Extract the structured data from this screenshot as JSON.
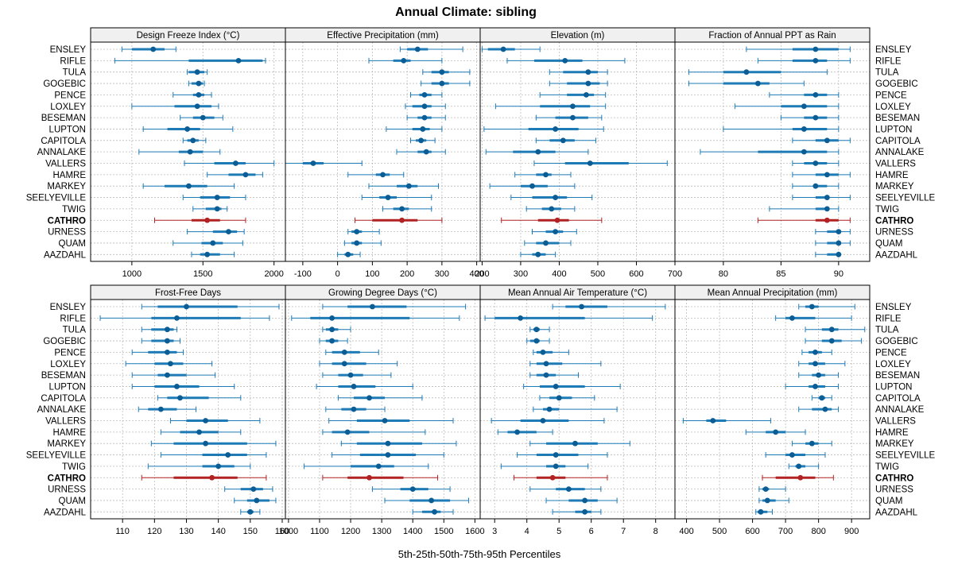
{
  "chart_data": {
    "type": "percentile-dotplot",
    "title": "Annual Climate: sibling",
    "xlabel": "5th-25th-50th-75th-95th Percentiles",
    "highlight": "CATHRO",
    "colors": {
      "series": "#1f7bb6",
      "median": "#0a5d95",
      "highlight": "#b22222",
      "grid": "#bbbbbb",
      "strip_bg": "#f0f0f0"
    },
    "sites": [
      "ENSLEY",
      "RIFLE",
      "TULA",
      "GOGEBIC",
      "PENCE",
      "LOXLEY",
      "BESEMAN",
      "LUPTON",
      "CAPITOLA",
      "ANNALAKE",
      "VALLERS",
      "HAMRE",
      "MARKEY",
      "SEELYEVILLE",
      "TWIG",
      "CATHRO",
      "URNESS",
      "QUAM",
      "AAZDAHL"
    ],
    "panels": [
      {
        "title": "Design Freeze Index (°C)",
        "xlim": [
          710,
          2080
        ],
        "ticks": [
          1000,
          1500,
          2000
        ],
        "values": [
          [
            930,
            1000,
            1150,
            1230,
            1310
          ],
          [
            880,
            1400,
            1750,
            1920,
            1940
          ],
          [
            1390,
            1400,
            1460,
            1510,
            1530
          ],
          [
            1400,
            1420,
            1470,
            1500,
            1510
          ],
          [
            1290,
            1430,
            1470,
            1510,
            1560
          ],
          [
            1000,
            1300,
            1460,
            1560,
            1610
          ],
          [
            1340,
            1430,
            1500,
            1580,
            1640
          ],
          [
            1080,
            1250,
            1390,
            1480,
            1710
          ],
          [
            1360,
            1390,
            1430,
            1470,
            1520
          ],
          [
            1050,
            1330,
            1410,
            1500,
            1620
          ],
          [
            1370,
            1580,
            1730,
            1800,
            2000
          ],
          [
            1530,
            1680,
            1800,
            1870,
            1920
          ],
          [
            1080,
            1230,
            1400,
            1530,
            1720
          ],
          [
            1360,
            1480,
            1600,
            1690,
            1800
          ],
          [
            1430,
            1520,
            1600,
            1630,
            1670
          ],
          [
            1160,
            1420,
            1530,
            1620,
            1800
          ],
          [
            1390,
            1570,
            1680,
            1740,
            1790
          ],
          [
            1290,
            1490,
            1570,
            1640,
            1780
          ],
          [
            1420,
            1480,
            1530,
            1620,
            1720
          ]
        ]
      },
      {
        "title": "Effective Precipitation (mm)",
        "xlim": [
          -150,
          410
        ],
        "ticks": [
          -100,
          0,
          100,
          200,
          300,
          400
        ],
        "values": [
          [
            180,
            200,
            230,
            260,
            360
          ],
          [
            90,
            160,
            190,
            210,
            300
          ],
          [
            245,
            270,
            300,
            320,
            380
          ],
          [
            240,
            270,
            300,
            320,
            380
          ],
          [
            210,
            235,
            250,
            270,
            300
          ],
          [
            195,
            215,
            250,
            270,
            310
          ],
          [
            200,
            230,
            250,
            270,
            310
          ],
          [
            140,
            215,
            245,
            265,
            300
          ],
          [
            210,
            225,
            240,
            255,
            280
          ],
          [
            170,
            230,
            255,
            270,
            310
          ],
          [
            -150,
            -100,
            -70,
            -40,
            70
          ],
          [
            30,
            110,
            130,
            150,
            190
          ],
          [
            90,
            170,
            205,
            230,
            290
          ],
          [
            70,
            120,
            145,
            170,
            270
          ],
          [
            130,
            160,
            185,
            205,
            270
          ],
          [
            50,
            100,
            185,
            230,
            300
          ],
          [
            30,
            40,
            55,
            70,
            120
          ],
          [
            20,
            40,
            55,
            70,
            125
          ],
          [
            0,
            20,
            30,
            45,
            65
          ]
        ]
      },
      {
        "title": "Elevation (m)",
        "xlim": [
          195,
          700
        ],
        "ticks": [
          200,
          300,
          400,
          500,
          600,
          700
        ],
        "values": [
          [
            200,
            215,
            255,
            285,
            350
          ],
          [
            265,
            335,
            415,
            460,
            570
          ],
          [
            375,
            410,
            475,
            500,
            525
          ],
          [
            375,
            420,
            475,
            505,
            525
          ],
          [
            350,
            420,
            470,
            490,
            520
          ],
          [
            235,
            350,
            435,
            480,
            520
          ],
          [
            340,
            390,
            435,
            475,
            510
          ],
          [
            205,
            320,
            390,
            450,
            515
          ],
          [
            340,
            375,
            410,
            440,
            495
          ],
          [
            210,
            280,
            345,
            390,
            475
          ],
          [
            335,
            415,
            480,
            580,
            680
          ],
          [
            285,
            340,
            365,
            380,
            430
          ],
          [
            220,
            300,
            330,
            370,
            440
          ],
          [
            275,
            330,
            390,
            420,
            485
          ],
          [
            315,
            355,
            380,
            405,
            440
          ],
          [
            250,
            345,
            395,
            425,
            510
          ],
          [
            330,
            365,
            390,
            410,
            445
          ],
          [
            310,
            340,
            365,
            400,
            430
          ],
          [
            300,
            330,
            345,
            365,
            390
          ]
        ]
      },
      {
        "title": "Fraction of Annual PPT as Rain",
        "xlim": [
          75.8,
          92.7
        ],
        "ticks": [
          80,
          85,
          90
        ],
        "values": [
          [
            82,
            86,
            88,
            90,
            91
          ],
          [
            83,
            86,
            88,
            89,
            91
          ],
          [
            77,
            80,
            82,
            85,
            89
          ],
          [
            77,
            80,
            83,
            84,
            87
          ],
          [
            84,
            87,
            88,
            89,
            90
          ],
          [
            81,
            85,
            87,
            89,
            90
          ],
          [
            85,
            87,
            88,
            89,
            90
          ],
          [
            80,
            86,
            87,
            89,
            90
          ],
          [
            86,
            88,
            89,
            90,
            91
          ],
          [
            78,
            83,
            87,
            89,
            90
          ],
          [
            86,
            87,
            88,
            89,
            90
          ],
          [
            86,
            88,
            89,
            90,
            91
          ],
          [
            86,
            88,
            88,
            89,
            90
          ],
          [
            86,
            88,
            89,
            89,
            91
          ],
          [
            84,
            88,
            89,
            89,
            90
          ],
          [
            83,
            88,
            89,
            90,
            91
          ],
          [
            88,
            89,
            90,
            90,
            91
          ],
          [
            88,
            89,
            90,
            90,
            91
          ],
          [
            88,
            89,
            90,
            90,
            90
          ]
        ]
      },
      {
        "title": "Frost-Free Days",
        "xlim": [
          100,
          161
        ],
        "ticks": [
          110,
          120,
          130,
          140,
          150,
          160
        ],
        "values": [
          [
            116,
            121,
            130,
            146,
            159
          ],
          [
            103,
            119,
            127,
            147,
            156
          ],
          [
            116,
            119,
            124,
            126,
            127
          ],
          [
            116,
            119,
            124,
            126,
            128
          ],
          [
            113,
            118,
            124,
            127,
            129
          ],
          [
            111,
            120,
            125,
            129,
            138
          ],
          [
            113,
            121,
            124,
            130,
            139
          ],
          [
            113,
            120,
            127,
            134,
            145
          ],
          [
            121,
            124,
            128,
            137,
            147
          ],
          [
            115,
            118,
            122,
            127,
            133
          ],
          [
            125,
            130,
            136,
            143,
            153
          ],
          [
            122,
            128,
            134,
            140,
            147
          ],
          [
            119,
            126,
            136,
            149,
            158
          ],
          [
            122,
            135,
            143,
            149,
            155
          ],
          [
            118,
            135,
            140,
            145,
            150
          ],
          [
            116,
            126,
            138,
            146,
            155
          ],
          [
            142,
            147,
            151,
            154,
            157
          ],
          [
            145,
            149,
            152,
            156,
            158
          ],
          [
            147,
            149,
            150,
            151,
            153
          ]
        ]
      },
      {
        "title": "Growing Degree Days (°C)",
        "xlim": [
          990,
          1617
        ],
        "ticks": [
          1000,
          1100,
          1200,
          1300,
          1400,
          1500,
          1600
        ],
        "values": [
          [
            1110,
            1190,
            1270,
            1380,
            1570
          ],
          [
            1010,
            1070,
            1140,
            1390,
            1550
          ],
          [
            1110,
            1120,
            1140,
            1160,
            1200
          ],
          [
            1100,
            1120,
            1140,
            1160,
            1190
          ],
          [
            1120,
            1140,
            1180,
            1230,
            1290
          ],
          [
            1100,
            1140,
            1180,
            1250,
            1350
          ],
          [
            1110,
            1160,
            1200,
            1240,
            1330
          ],
          [
            1090,
            1160,
            1210,
            1280,
            1400
          ],
          [
            1160,
            1210,
            1260,
            1310,
            1430
          ],
          [
            1120,
            1170,
            1210,
            1250,
            1310
          ],
          [
            1130,
            1220,
            1310,
            1390,
            1530
          ],
          [
            1110,
            1140,
            1190,
            1260,
            1440
          ],
          [
            1170,
            1220,
            1320,
            1430,
            1540
          ],
          [
            1140,
            1230,
            1320,
            1410,
            1500
          ],
          [
            1050,
            1200,
            1290,
            1340,
            1450
          ],
          [
            1110,
            1190,
            1260,
            1370,
            1480
          ],
          [
            1270,
            1360,
            1400,
            1450,
            1520
          ],
          [
            1310,
            1390,
            1460,
            1520,
            1580
          ],
          [
            1400,
            1430,
            1470,
            1490,
            1530
          ]
        ]
      },
      {
        "title": "Mean Annual Air Temperature (°C)",
        "xlim": [
          2.55,
          8.6
        ],
        "ticks": [
          3,
          4,
          5,
          6,
          7,
          8
        ],
        "values": [
          [
            4.8,
            5.2,
            5.7,
            6.5,
            8.3
          ],
          [
            2.7,
            3.0,
            3.8,
            5.8,
            7.9
          ],
          [
            4.1,
            4.2,
            4.3,
            4.4,
            4.7
          ],
          [
            4.0,
            4.1,
            4.3,
            4.4,
            4.7
          ],
          [
            4.2,
            4.3,
            4.5,
            4.8,
            5.3
          ],
          [
            4.1,
            4.3,
            4.6,
            5.1,
            6.3
          ],
          [
            4.1,
            4.3,
            4.6,
            4.9,
            5.6
          ],
          [
            3.9,
            4.4,
            4.9,
            5.8,
            6.9
          ],
          [
            4.4,
            4.7,
            5.0,
            5.4,
            6.1
          ],
          [
            4.2,
            4.5,
            4.7,
            5.0,
            6.8
          ],
          [
            2.9,
            3.8,
            4.5,
            5.3,
            6.4
          ],
          [
            3.1,
            3.4,
            3.7,
            4.3,
            4.8
          ],
          [
            4.1,
            4.6,
            5.5,
            6.2,
            7.2
          ],
          [
            3.7,
            4.3,
            4.9,
            5.6,
            6.5
          ],
          [
            3.2,
            4.6,
            4.9,
            5.2,
            5.9
          ],
          [
            3.6,
            4.3,
            4.8,
            5.2,
            6.5
          ],
          [
            4.1,
            4.9,
            5.3,
            5.8,
            6.3
          ],
          [
            4.6,
            5.3,
            5.8,
            6.2,
            6.8
          ],
          [
            4.8,
            5.5,
            5.8,
            6.0,
            6.3
          ]
        ]
      },
      {
        "title": "Mean Annual Precipitation (mm)",
        "xlim": [
          365,
          955
        ],
        "ticks": [
          400,
          500,
          600,
          700,
          800,
          900
        ],
        "values": [
          [
            740,
            760,
            780,
            800,
            910
          ],
          [
            670,
            700,
            720,
            790,
            900
          ],
          [
            760,
            810,
            840,
            860,
            940
          ],
          [
            760,
            810,
            840,
            870,
            930
          ],
          [
            750,
            770,
            790,
            810,
            840
          ],
          [
            740,
            770,
            790,
            820,
            880
          ],
          [
            740,
            780,
            800,
            820,
            860
          ],
          [
            700,
            770,
            790,
            820,
            860
          ],
          [
            780,
            800,
            810,
            820,
            840
          ],
          [
            740,
            780,
            820,
            840,
            860
          ],
          [
            390,
            460,
            480,
            520,
            655
          ],
          [
            580,
            640,
            670,
            700,
            760
          ],
          [
            720,
            760,
            780,
            800,
            840
          ],
          [
            640,
            700,
            720,
            760,
            820
          ],
          [
            710,
            730,
            740,
            760,
            800
          ],
          [
            630,
            670,
            745,
            790,
            845
          ],
          [
            620,
            630,
            640,
            650,
            700
          ],
          [
            620,
            630,
            645,
            670,
            710
          ],
          [
            610,
            615,
            625,
            645,
            660
          ]
        ]
      }
    ]
  }
}
